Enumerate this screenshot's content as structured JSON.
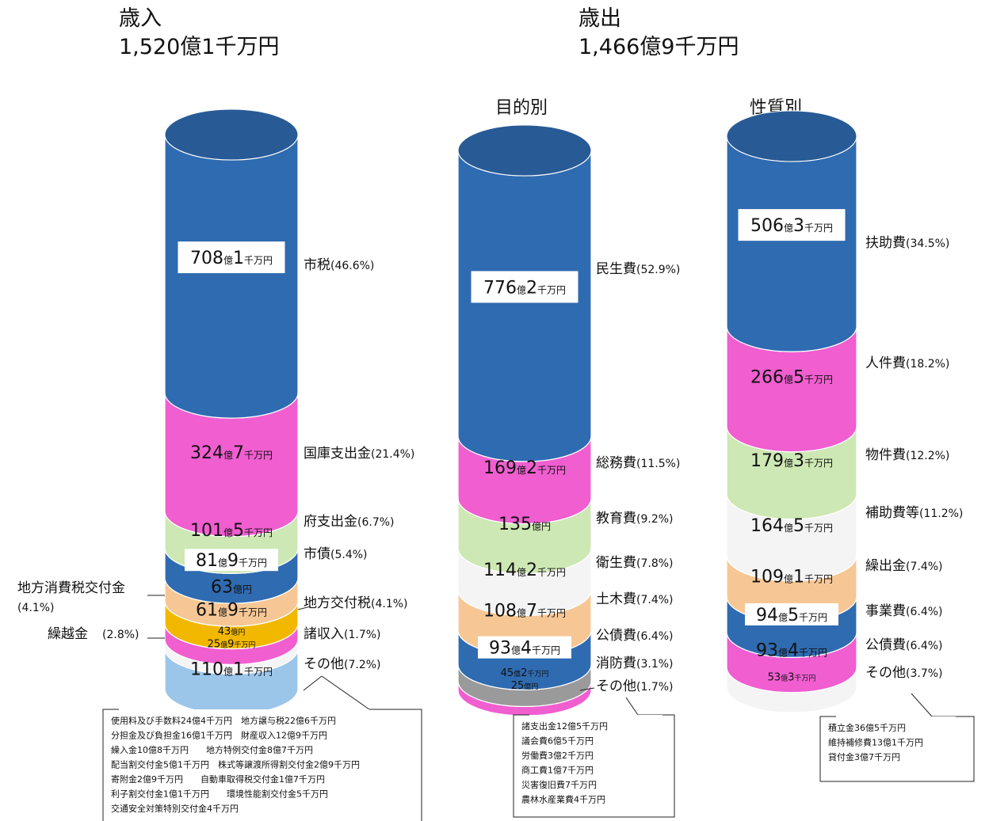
{
  "revenue": {
    "title": "歳入",
    "total": "1,520億1千万円"
  },
  "expenditure": {
    "title": "歳出",
    "total": "1,466億9千万円",
    "purpose_title": "目的別",
    "nature_title": "性質別"
  },
  "chart_data": [
    {
      "type": "bar",
      "title": "歳入",
      "subtitle": "1,520億1千万円",
      "categories": [
        "市税",
        "国庫支出金",
        "府支出金",
        "市債",
        "地方消費税交付金",
        "地方交付税",
        "繰越金",
        "諸収入",
        "その他"
      ],
      "values": [
        708.1,
        324.7,
        101.5,
        81.9,
        63.0,
        61.9,
        43.0,
        25.9,
        110.1
      ],
      "value_labels": [
        "708億1千万円",
        "324億7千万円",
        "101億5千万円",
        "81億9千万円",
        "63億円",
        "61億9千万円",
        "43億円",
        "25億9千万円",
        "110億1千万円"
      ],
      "percent_labels": [
        "(46.6%)",
        "(21.4%)",
        "(6.7%)",
        "(5.4%)",
        "(4.1%)",
        "(4.1%)",
        "(2.8%)",
        "(1.7%)",
        "(7.2%)"
      ],
      "colors": [
        "#2f6bb0",
        "#f05ed0",
        "#cde8b4",
        "#2f6bb0",
        "#f6c795",
        "#f2b800",
        "#f05ed0",
        "#f4f4f4",
        "#9cc5ea"
      ],
      "other_breakdown": [
        "使用料及び手数料24億4千万円　地方譲与税22億6千万円",
        "分担金及び負担金16億1千万円　財産収入12億9千万円",
        "繰入金10億8千万円　　地方特例交付金8億7千万円",
        "配当割交付金5億1千万円　株式等譲渡所得割交付金2億9千万円",
        "寄附金2億9千万円　　自動車取得税交付金1億7千万円",
        "利子割交付金1億1千万円　　環境性能割交付金5千万円",
        "交通安全対策特別交付金4千万円"
      ]
    },
    {
      "type": "bar",
      "title": "目的別",
      "categories": [
        "民生費",
        "総務費",
        "教育費",
        "衛生費",
        "土木費",
        "公債費",
        "消防費",
        "その他"
      ],
      "values": [
        776.2,
        169.2,
        135.0,
        114.2,
        108.7,
        93.4,
        45.2,
        25.0
      ],
      "value_labels": [
        "776億2千万円",
        "169億2千万円",
        "135億円",
        "114億2千万円",
        "108億7千万円",
        "93億4千万円",
        "45億2千万円",
        "25億円"
      ],
      "percent_labels": [
        "(52.9%)",
        "(11.5%)",
        "(9.2%)",
        "(7.8%)",
        "(7.4%)",
        "(6.4%)",
        "(3.1%)",
        "(1.7%)"
      ],
      "colors": [
        "#2f6bb0",
        "#f05ed0",
        "#cde8b4",
        "#f4f4f4",
        "#f6c795",
        "#2f6bb0",
        "#9a9a9a",
        "#f05ed0"
      ],
      "other_breakdown": [
        "諸支出金12億5千万円",
        "議会費6億5千万円",
        "労働費3億2千万円",
        "商工費1億7千万円",
        "災害復旧費7千万円",
        "農林水産業費4千万円"
      ]
    },
    {
      "type": "bar",
      "title": "性質別",
      "categories": [
        "扶助費",
        "人件費",
        "物件費",
        "補助費等",
        "繰出金",
        "事業費",
        "公債費",
        "その他"
      ],
      "values": [
        506.3,
        266.5,
        179.3,
        164.5,
        109.1,
        94.5,
        93.4,
        53.3
      ],
      "value_labels": [
        "506億3千万円",
        "266億5千万円",
        "179億3千万円",
        "164億5千万円",
        "109億1千万円",
        "94億5千万円",
        "93億4千万円",
        "53億3千万円"
      ],
      "percent_labels": [
        "(34.5%)",
        "(18.2%)",
        "(12.2%)",
        "(11.2%)",
        "(7.4%)",
        "(6.4%)",
        "(6.4%)",
        "(3.7%)"
      ],
      "colors": [
        "#2f6bb0",
        "#f05ed0",
        "#cde8b4",
        "#f4f4f4",
        "#f6c795",
        "#2f6bb0",
        "#f05ed0",
        "#f4f4f4"
      ],
      "other_breakdown": [
        "積立金36億5千万円",
        "維持補修費13億1千万円",
        "貸付金3億7千万円"
      ]
    }
  ]
}
